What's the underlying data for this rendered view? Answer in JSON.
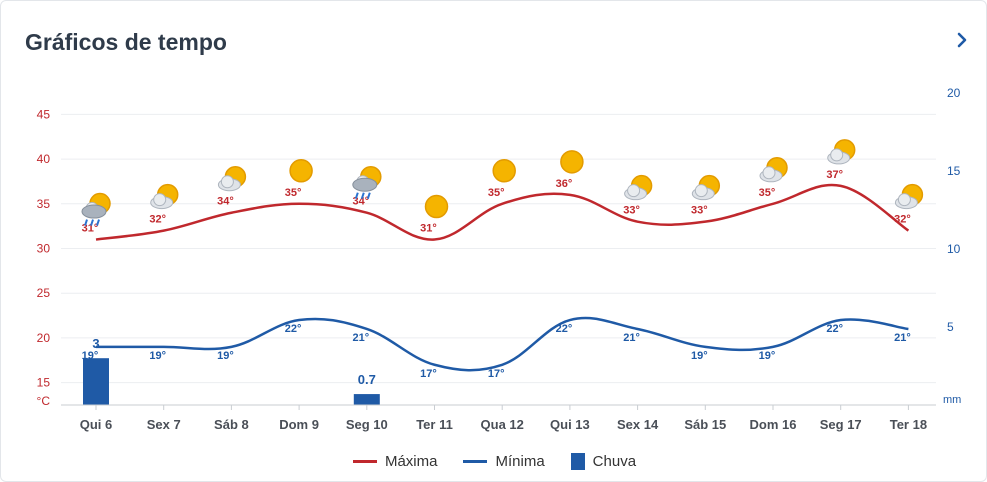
{
  "header": {
    "title": "Gráficos de tempo",
    "next_icon": "chevron-right-icon"
  },
  "colors": {
    "max": "#c0282d",
    "min": "#1f5aa6",
    "rain": "#1f5aa6",
    "title": "#2f3b4a",
    "grid": "#eceef1"
  },
  "chart_data": {
    "type": "line",
    "categories": [
      "Qui 6",
      "Sex 7",
      "Sáb 8",
      "Dom 9",
      "Seg 10",
      "Ter 11",
      "Qua 12",
      "Qui 13",
      "Sex 14",
      "Sáb 15",
      "Dom 16",
      "Seg 17",
      "Ter 18"
    ],
    "series": [
      {
        "name": "Máxima",
        "kind": "line",
        "axis": "left",
        "color": "#c0282d",
        "values": [
          31,
          32,
          34,
          35,
          34,
          31,
          35,
          36,
          33,
          33,
          35,
          37,
          32
        ],
        "labels": [
          "31°",
          "32°",
          "34°",
          "35°",
          "34°",
          "31°",
          "35°",
          "36°",
          "33°",
          "33°",
          "35°",
          "37°",
          "32°"
        ]
      },
      {
        "name": "Mínima",
        "kind": "line",
        "axis": "left",
        "color": "#1f5aa6",
        "values": [
          19,
          19,
          19,
          22,
          21,
          17,
          17,
          22,
          21,
          19,
          19,
          22,
          21
        ],
        "labels": [
          "19°",
          "19°",
          "19°",
          "22°",
          "21°",
          "17°",
          "17°",
          "22°",
          "21°",
          "19°",
          "19°",
          "22°",
          "21°"
        ]
      },
      {
        "name": "Chuva",
        "kind": "bar",
        "axis": "right",
        "color": "#1f5aa6",
        "values": [
          3,
          0,
          0,
          0,
          0.7,
          0,
          0,
          0,
          0,
          0,
          0,
          0,
          0
        ],
        "labels": [
          "3",
          "",
          "",
          "",
          "0.7",
          "",
          "",
          "",
          "",
          "",
          "",
          "",
          ""
        ]
      }
    ],
    "y_left": {
      "unit": "°C",
      "ticks": [
        "15",
        "20",
        "25",
        "30",
        "35",
        "40",
        "45"
      ],
      "range": [
        12.5,
        47.5
      ]
    },
    "y_right": {
      "unit": "mm",
      "ticks": [
        "5",
        "10",
        "15",
        "20"
      ],
      "range": [
        0,
        20
      ]
    },
    "weather_icons": [
      "rain-sun-icon",
      "partly-cloudy-icon",
      "partly-cloudy-icon",
      "sun-icon",
      "rain-sun-icon",
      "sun-icon",
      "sun-icon",
      "sun-icon",
      "partly-cloudy-icon",
      "partly-cloudy-icon",
      "partly-cloudy-icon",
      "partly-cloudy-icon",
      "partly-cloudy-icon"
    ],
    "legend_position": "bottom",
    "grid": true
  }
}
